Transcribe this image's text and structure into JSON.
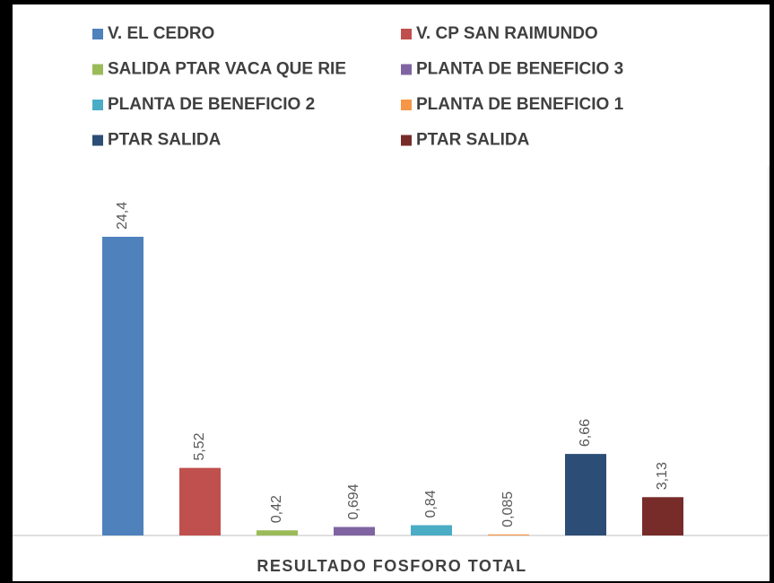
{
  "chart_data": {
    "type": "bar",
    "categories": [
      "RESULTADO FOSFORO TOTAL"
    ],
    "series": [
      {
        "name": "V. EL CEDRO",
        "color": "#4f81bd",
        "values": [
          24.4
        ],
        "value_labels": [
          "24,4"
        ]
      },
      {
        "name": "V. CP SAN RAIMUNDO",
        "color": "#c0504d",
        "values": [
          5.52
        ],
        "value_labels": [
          "5,52"
        ]
      },
      {
        "name": "SALIDA PTAR VACA QUE RIE",
        "color": "#9bbb59",
        "values": [
          0.42
        ],
        "value_labels": [
          "0,42"
        ]
      },
      {
        "name": "PLANTA DE BENEFICIO 3",
        "color": "#8064a2",
        "values": [
          0.694
        ],
        "value_labels": [
          "0,694"
        ]
      },
      {
        "name": "PLANTA DE BENEFICIO 2",
        "color": "#4bacc6",
        "values": [
          0.84
        ],
        "value_labels": [
          "0,84"
        ]
      },
      {
        "name": "PLANTA DE BENEFICIO 1",
        "color": "#f79646",
        "values": [
          0.085
        ],
        "value_labels": [
          "0,085"
        ]
      },
      {
        "name": "PTAR SALIDA",
        "color": "#2c4d75",
        "values": [
          6.66
        ],
        "value_labels": [
          "6,66"
        ]
      },
      {
        "name": "PTAR SALIDA",
        "color": "#772c2a",
        "values": [
          3.13
        ],
        "value_labels": [
          "3,13"
        ]
      }
    ],
    "legend": "top"
  }
}
